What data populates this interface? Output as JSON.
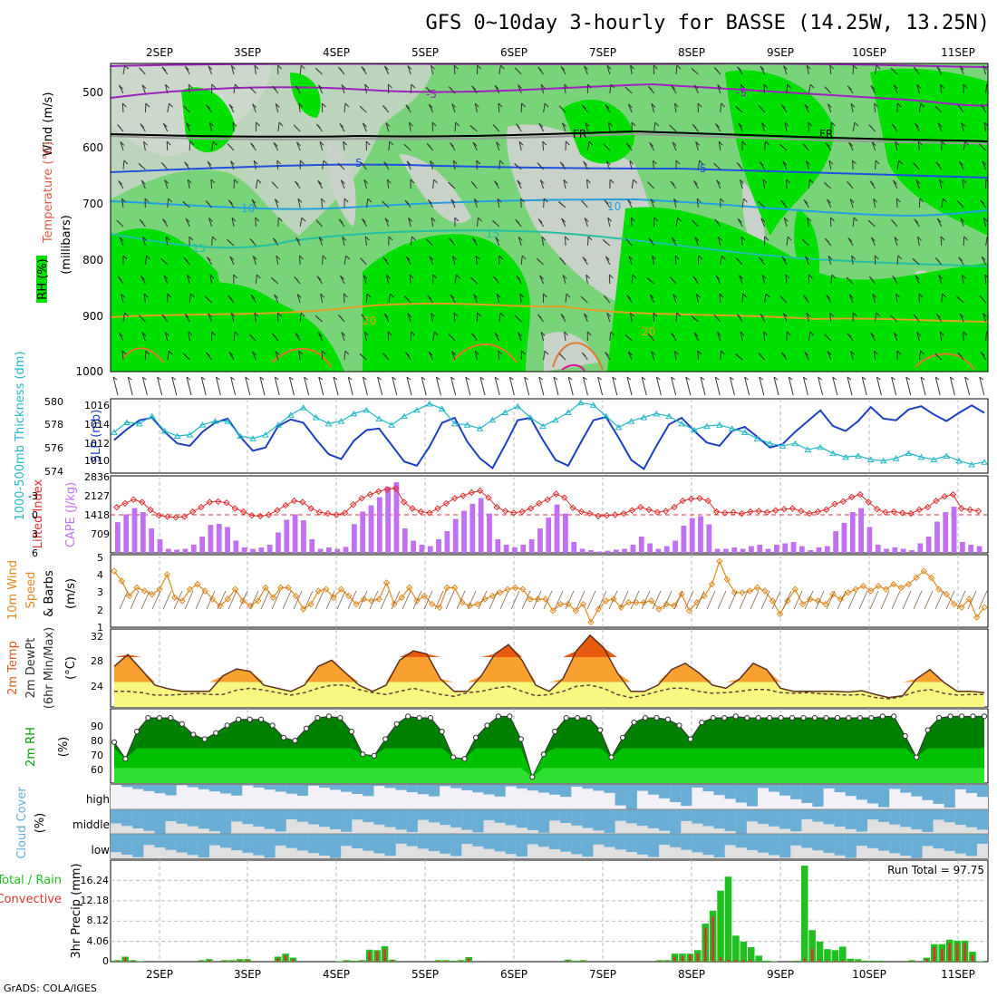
{
  "title": "GFS 0~10day 3-hourly for BASSE (14.25W, 13.25N)",
  "credit": "GrADS: COLA/IGES",
  "dates": [
    "2SEP",
    "3SEP",
    "4SEP",
    "5SEP",
    "6SEP",
    "7SEP",
    "8SEP",
    "9SEP",
    "10SEP",
    "11SEP"
  ],
  "colors": {
    "rh_light": "#e8f3e8",
    "rh_grey": "#c8d2c8",
    "rh_mid": "#79d379",
    "rh_bright": "#00e000",
    "slp": "#1d3fc4",
    "thick": "#22b8c8",
    "li": "#e03030",
    "cape": "#c070f0",
    "wind": "#e08a20",
    "temp_hot": "#e85a10",
    "temp_warm": "#f8a030",
    "temp_cool": "#f8f880",
    "rh2m_dark": "#008000",
    "rh2m_mid": "#00c000",
    "rh2m_light": "#30e030",
    "cloud": "#6aaed6",
    "cloud_bg": "#e0e0e0",
    "precip_total": "#20c020",
    "precip_conv": "#e03030"
  },
  "panels": {
    "profile": {
      "ylabel": "(millibars)",
      "legend": [
        "Wind (m/s)",
        "Temperature (°C)",
        "RH (%)"
      ],
      "pressure_ticks": [
        "500",
        "600",
        "700",
        "800",
        "900",
        "1000"
      ],
      "contour_labels": [
        "-5",
        "-5",
        "FR",
        "FR",
        "5",
        "5",
        "10",
        "10",
        "15",
        "15",
        "20",
        "20"
      ]
    },
    "slp": {
      "thickness_label": "1000-500mb Thickness (dm)",
      "slp_label": "SLP (mb)",
      "thickness_ticks": [
        "580",
        "578",
        "576",
        "574"
      ],
      "slp_ticks": [
        "1016",
        "1014",
        "1012",
        "1010"
      ]
    },
    "stability": {
      "li_label": "Lifted Index",
      "cape_label": "CAPE (J/kg)",
      "li_ticks": [
        "-3",
        "0",
        "3",
        "6"
      ],
      "cape_ticks": [
        "2836",
        "2127",
        "1418",
        "709"
      ]
    },
    "wind10m": {
      "label1": "10m Wind",
      "label2": "Speed",
      "label3": "& Barbs",
      "unit": "(m/s)",
      "ticks": [
        "5",
        "4",
        "3",
        "2",
        "1"
      ]
    },
    "temp2m": {
      "label1": "2m Temp",
      "label2": "2m DewPt",
      "label3": "(6hr Min/Max)",
      "unit": "(°C)",
      "ticks": [
        "32",
        "28",
        "24"
      ]
    },
    "rh2m": {
      "label": "2m RH",
      "unit": "(%)",
      "ticks": [
        "90",
        "80",
        "70",
        "60"
      ]
    },
    "cloud": {
      "label": "Cloud Cover",
      "unit": "(%)",
      "levels": [
        "high",
        "middle",
        "low"
      ]
    },
    "precip": {
      "label1": "Total / Rain",
      "label2": "Convective",
      "ylabel": "3hr Precip (mm)",
      "ticks": [
        "16.24",
        "12.18",
        "8.12",
        "4.06",
        "0"
      ],
      "run_total": "Run Total = 97.75"
    }
  },
  "chart_data": [
    {
      "type": "line",
      "title": "1000-500mb Thickness & SLP",
      "series": [
        {
          "name": "SLP (mb)",
          "values": [
            1012.5,
            1013.8,
            1014.9,
            1015.2,
            1013.5,
            1012.1,
            1011.8,
            1013.5,
            1014.6,
            1015.1,
            1012.9,
            1011.2,
            1011.6,
            1014.2,
            1015.0,
            1014.6,
            1012.6,
            1010.8,
            1010.2,
            1012.4,
            1013.7,
            1013.9,
            1011.9,
            1009.9,
            1009.4,
            1011.7,
            1014.6,
            1015.2,
            1012.3,
            1010.3,
            1009.1,
            1011.9,
            1014.9,
            1015.2,
            1012.5,
            1010.1,
            1009.4,
            1012.2,
            1014.9,
            1015.3,
            1012.8,
            1010.1,
            1009.0,
            1011.8,
            1014.4,
            1015.2,
            1013.6,
            1012.2,
            1011.8,
            1013.6,
            1014.1,
            1012.9,
            1011.6,
            1012.0,
            1013.5,
            1014.8,
            1016.1,
            1014.2,
            1013.6,
            1014.8,
            1016.5,
            1015.1,
            1014.9,
            1016.2,
            1016.6,
            1015.6,
            1014.8,
            1015.8,
            1016.7,
            1015.8
          ]
        },
        {
          "name": "1000-500mb Thickness (dm)",
          "values": [
            577.3,
            578.1,
            578.0,
            578.6,
            577.4,
            577.0,
            577.1,
            577.9,
            578.2,
            578.2,
            577.0,
            576.8,
            577.1,
            577.9,
            578.7,
            579.3,
            578.5,
            578.0,
            578.2,
            578.8,
            579.1,
            578.4,
            577.9,
            578.6,
            579.1,
            579.6,
            579.2,
            578.0,
            577.9,
            577.6,
            578.3,
            578.9,
            579.4,
            578.5,
            577.8,
            578.3,
            578.9,
            579.7,
            579.5,
            578.6,
            577.7,
            578.2,
            578.5,
            578.8,
            578.6,
            578.0,
            577.5,
            577.8,
            577.9,
            577.6,
            577.3,
            576.8,
            576.4,
            576.2,
            576.4,
            575.9,
            576.1,
            575.6,
            575.3,
            575.4,
            575.1,
            575.0,
            575.2,
            575.6,
            575.3,
            575.1,
            575.4,
            575.0,
            574.7,
            574.9
          ]
        }
      ]
    },
    {
      "type": "bar",
      "title": "Lifted Index & CAPE",
      "series": [
        {
          "name": "CAPE (J/kg)",
          "values": [
            1130,
            1420,
            1650,
            1500,
            900,
            500,
            150,
            120,
            150,
            300,
            600,
            1030,
            1070,
            950,
            450,
            200,
            150,
            200,
            300,
            750,
            1220,
            1420,
            1200,
            500,
            150,
            200,
            150,
            220,
            1060,
            1520,
            1750,
            2050,
            2430,
            2600,
            900,
            450,
            300,
            250,
            500,
            800,
            1250,
            1550,
            1810,
            2020,
            1450,
            500,
            300,
            200,
            300,
            500,
            900,
            1300,
            1780,
            1450,
            400,
            150,
            100,
            50,
            80,
            120,
            150,
            300,
            600,
            350,
            150,
            250,
            450,
            1000,
            1280,
            1350,
            1050,
            150,
            150,
            200,
            150,
            250,
            300,
            150,
            300,
            350,
            400,
            250,
            100,
            200,
            250,
            800,
            1100,
            1500,
            1650,
            950,
            300,
            150,
            200,
            150,
            100,
            350,
            600,
            1150,
            1500,
            1700,
            400,
            300,
            250
          ]
        },
        {
          "name": "Lifted Index",
          "values": [
            -1.2,
            -1.8,
            -2.4,
            -2.0,
            -0.8,
            0.1,
            0.3,
            0.4,
            0.3,
            -0.5,
            -1.2,
            -2.0,
            -2.1,
            -1.9,
            -1.0,
            -0.5,
            0.1,
            0.2,
            0.0,
            -0.7,
            -1.5,
            -2.2,
            -2.0,
            -1.0,
            -0.4,
            -0.2,
            0.0,
            -0.3,
            -1.6,
            -2.6,
            -3.2,
            -3.7,
            -4.0,
            -4.2,
            -2.0,
            -1.0,
            -0.5,
            -0.3,
            -1.0,
            -1.8,
            -2.6,
            -3.0,
            -3.5,
            -3.8,
            -2.7,
            -1.2,
            -0.6,
            -0.3,
            -0.5,
            -1.0,
            -1.8,
            -2.4,
            -3.3,
            -2.7,
            -1.1,
            -0.5,
            -0.2,
            0.2,
            0.1,
            0.0,
            -0.2,
            -0.7,
            -1.2,
            -0.8,
            -0.4,
            -0.6,
            -1.2,
            -2.2,
            -2.5,
            -2.6,
            -2.2,
            -0.5,
            -0.3,
            -0.4,
            -0.2,
            -0.5,
            -0.6,
            -0.4,
            -0.7,
            -0.9,
            -1.0,
            -0.6,
            -0.2,
            -0.5,
            -0.8,
            -1.7,
            -2.1,
            -2.8,
            -3.2,
            -2.0,
            -0.9,
            -0.4,
            -0.5,
            -0.3,
            -0.2,
            -0.8,
            -1.2,
            -2.2,
            -2.9,
            -3.2,
            -1.0,
            -0.8,
            -0.6
          ]
        }
      ]
    },
    {
      "type": "line",
      "title": "10m Wind Speed",
      "series": [
        {
          "name": "10m Wind Speed (m/s)",
          "values": [
            4.3,
            3.7,
            2.8,
            3.3,
            3.1,
            2.9,
            3.2,
            4.1,
            2.7,
            2.5,
            3.2,
            3.5,
            3.1,
            2.6,
            2.2,
            2.6,
            3.2,
            2.5,
            2.2,
            2.5,
            3.3,
            2.7,
            3.3,
            3.3,
            2.8,
            2.0,
            2.3,
            3.1,
            3.2,
            2.7,
            3.2,
            2.8,
            2.3,
            2.6,
            2.5,
            2.6,
            3.6,
            2.3,
            2.7,
            3.3,
            2.5,
            2.8,
            2.3,
            2.1,
            3.3,
            3.3,
            2.4,
            2.2,
            2.3,
            2.6,
            2.8,
            3.0,
            3.2,
            3.3,
            3.2,
            2.6,
            2.6,
            2.6,
            1.9,
            2.3,
            2.3,
            1.9,
            2.3,
            1.2,
            2.0,
            2.5,
            2.6,
            2.1,
            2.4,
            2.4,
            2.4,
            2.5,
            2.0,
            2.3,
            2.2,
            2.9,
            1.9,
            2.4,
            2.8,
            3.5,
            4.9,
            3.8,
            3.0,
            3.0,
            3.1,
            3.3,
            3.1,
            2.5,
            1.7,
            2.5,
            3.2,
            2.3,
            2.6,
            2.5,
            2.3,
            2.9,
            2.6,
            3.0,
            3.2,
            3.4,
            3.1,
            3.4,
            3.2,
            3.5,
            3.3,
            3.5,
            3.9,
            4.3,
            3.9,
            3.2,
            2.9,
            2.3,
            2.1,
            2.6,
            1.5,
            2.1
          ]
        }
      ]
    },
    {
      "type": "area",
      "title": "2m Temp & DewPt",
      "series": [
        {
          "name": "2m Temp (°C)",
          "values": [
            27.0,
            28.9,
            26.5,
            24.0,
            23.4,
            23.0,
            23.0,
            23.0,
            25.5,
            26.6,
            26.2,
            24.0,
            23.5,
            23.0,
            24.0,
            27.0,
            28.0,
            26.0,
            24.0,
            23.0,
            24.0,
            28.0,
            29.5,
            29.0,
            25.0,
            23.0,
            23.0,
            25.5,
            29.0,
            30.5,
            28.0,
            24.0,
            23.0,
            25.0,
            29.5,
            32.0,
            30.0,
            26.0,
            23.0,
            23.0,
            24.0,
            26.5,
            27.5,
            26.0,
            24.0,
            23.5,
            25.0,
            27.5,
            26.5,
            23.5,
            23.0,
            23.0,
            23.0,
            23.0,
            22.9,
            23.1,
            22.5,
            22.0,
            22.3,
            25.0,
            26.5,
            24.5,
            23.0,
            23.0,
            22.8
          ]
        },
        {
          "name": "2m DewPt (°C)",
          "values": [
            23.0,
            23.0,
            22.8,
            22.4,
            22.4,
            22.5,
            22.7,
            22.5,
            22.5,
            23.2,
            23.5,
            23.2,
            22.8,
            22.4,
            22.8,
            23.5,
            24.0,
            24.0,
            23.3,
            22.8,
            22.5,
            23.0,
            23.5,
            23.0,
            22.5,
            22.2,
            22.8,
            23.0,
            23.5,
            23.8,
            23.0,
            22.3,
            22.5,
            23.0,
            23.8,
            24.0,
            23.5,
            22.5,
            22.0,
            22.4,
            23.0,
            23.5,
            23.5,
            23.0,
            22.7,
            22.8,
            23.0,
            23.3,
            23.3,
            22.8,
            22.7,
            22.8,
            22.6,
            22.5,
            22.4,
            22.5,
            22.0,
            21.8,
            22.2,
            23.0,
            23.3,
            22.7,
            22.4,
            22.5,
            22.5
          ]
        }
      ]
    },
    {
      "type": "area",
      "title": "2m RH",
      "series": [
        {
          "name": "2m RH (%)",
          "values": [
            79,
            68,
            86,
            95,
            95,
            95,
            91,
            84,
            81,
            85,
            90,
            94,
            94,
            94,
            90,
            82,
            80,
            88,
            95,
            96,
            95,
            86,
            71,
            70,
            81,
            91,
            96,
            95,
            95,
            86,
            69,
            68,
            82,
            90,
            96,
            96,
            81,
            56,
            71,
            86,
            95,
            95,
            95,
            87,
            69,
            82,
            92,
            95,
            95,
            94,
            90,
            81,
            92,
            95,
            95,
            96,
            95,
            95,
            95,
            95,
            95,
            95,
            95,
            95,
            95,
            95,
            95,
            95,
            96,
            96,
            83,
            69,
            87,
            95,
            96,
            96,
            96,
            96
          ]
        }
      ]
    },
    {
      "type": "bar",
      "title": "3hr Precip",
      "series": [
        {
          "name": "Total / Rain (mm)",
          "values": [
            0.3,
            1.0,
            0.3,
            0.1,
            0,
            0,
            0,
            0,
            0,
            0,
            0,
            0.3,
            0.5,
            0,
            0.3,
            0.3,
            0.5,
            0.5,
            0,
            0,
            0,
            1.0,
            1.6,
            0.8,
            0,
            0,
            0,
            0,
            0,
            0.1,
            0.3,
            0.2,
            0.3,
            2.4,
            2.3,
            3.1,
            0.4,
            0,
            0,
            0,
            0,
            0,
            0.3,
            0.3,
            0.2,
            0.3,
            0.9,
            0,
            0,
            0,
            0,
            0,
            0,
            0,
            0,
            0,
            0,
            0,
            0,
            0.4,
            0.2,
            0.3,
            0,
            0,
            0,
            0,
            0,
            0,
            0,
            0,
            0,
            0.3,
            0.3,
            1.6,
            1.6,
            1.6,
            2.3,
            7.6,
            10.2,
            14.2,
            17.0,
            5.2,
            4.0,
            2.9,
            1.2,
            0.2,
            0.1,
            0,
            0,
            0.2,
            19.2,
            6.3,
            4.0,
            2.5,
            2.3,
            3.0,
            0.6,
            0.5,
            0.2,
            0.2,
            0.2,
            0,
            0,
            0,
            0.3,
            0,
            0.8,
            3.5,
            3.5,
            4.4,
            4.2,
            4.2,
            2.0,
            0.1
          ]
        },
        {
          "name": "Convective (mm)",
          "values": [
            0.2,
            0.8,
            0.2,
            0,
            0,
            0,
            0,
            0,
            0,
            0,
            0,
            0.2,
            0.3,
            0,
            0.2,
            0.2,
            0.3,
            0.3,
            0,
            0,
            0,
            0.7,
            1.3,
            0.5,
            0,
            0,
            0,
            0,
            0,
            0,
            0.2,
            0.1,
            0.2,
            2.0,
            2.1,
            2.5,
            0.3,
            0,
            0,
            0,
            0,
            0,
            0.2,
            0.2,
            0.1,
            0.2,
            0.7,
            0,
            0,
            0,
            0,
            0,
            0,
            0,
            0,
            0,
            0,
            0,
            0,
            0.3,
            0.1,
            0.2,
            0,
            0,
            0,
            0,
            0,
            0,
            0,
            0,
            0,
            0.2,
            0.2,
            1.0,
            1.1,
            1.4,
            1.6,
            6.8,
            9.0,
            0.9,
            0.4,
            0.4,
            0.4,
            0.3,
            0.1,
            0,
            0,
            0,
            0,
            0.1,
            0.6,
            2.6,
            0.3,
            0.2,
            0.2,
            0.3,
            0.2,
            0.1,
            0.1,
            0.1,
            0.1,
            0,
            0,
            0,
            0.2,
            0,
            0.5,
            2.9,
            2.5,
            3.7,
            3.6,
            3.7,
            1.3,
            0
          ]
        }
      ]
    }
  ]
}
